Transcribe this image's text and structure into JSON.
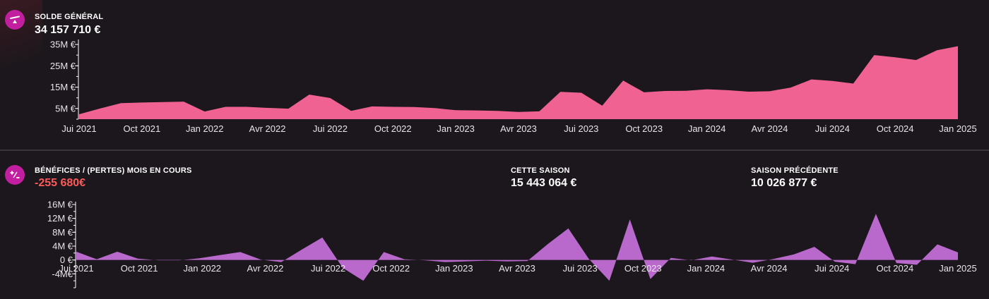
{
  "solde": {
    "title": "SOLDE GÉNÉRAL",
    "value": "34 157 710 €",
    "icon": "balance-scale-icon",
    "accent": "#c21fa0"
  },
  "results": {
    "title": "BÉNÉFICES / (PERTES) MOIS EN COURS",
    "value": "-255 680€",
    "value_color": "#ff5a5a",
    "icon": "plus-minus-icon",
    "this_season_title": "CETTE SAISON",
    "this_season_value": "15 443 064 €",
    "last_season_title": "SAISON PRÉCÉDENTE",
    "last_season_value": "10 026 877 €"
  },
  "chart_data": [
    {
      "type": "area",
      "color": "#f06292",
      "x_tick_labels": [
        "Jui 2021",
        "Oct 2021",
        "Jan 2022",
        "Avr 2022",
        "Jui 2022",
        "Oct 2022",
        "Jan 2023",
        "Avr 2023",
        "Jui 2023",
        "Oct 2023",
        "Jan 2024",
        "Avr 2024",
        "Jui 2024",
        "Oct 2024",
        "Jan 2025"
      ],
      "y_tick_labels": [
        "35M €",
        "25M €",
        "15M €",
        "5M €"
      ],
      "y_tick_values": [
        35,
        25,
        15,
        5
      ],
      "ylim": [
        0,
        36
      ],
      "unit": "M €",
      "values": [
        2.3,
        5,
        7.5,
        7.8,
        8,
        8.2,
        3.6,
        5.8,
        5.8,
        5.3,
        4.9,
        11.5,
        9.9,
        3.9,
        6,
        5.8,
        5.7,
        5.2,
        4.2,
        4.1,
        3.9,
        3.4,
        3.7,
        12.8,
        12.4,
        6.3,
        18.1,
        12.6,
        13.2,
        13.3,
        14,
        13.6,
        12.9,
        13.1,
        14.8,
        18.6,
        17.9,
        16.7,
        30,
        29,
        27.7,
        32.3,
        34.2
      ]
    },
    {
      "type": "area",
      "color": "#b968cc",
      "x_tick_labels": [
        "Jui 2021",
        "Oct 2021",
        "Jan 2022",
        "Avr 2022",
        "Jui 2022",
        "Oct 2022",
        "Jan 2023",
        "Avr 2023",
        "Jui 2023",
        "Oct 2023",
        "Jan 2024",
        "Avr 2024",
        "Jui 2024",
        "Oct 2024",
        "Jan 2025"
      ],
      "y_tick_labels": [
        "16M €",
        "12M €",
        "8M €",
        "4M €",
        "0 €",
        "-4M€"
      ],
      "y_tick_values": [
        16,
        12,
        8,
        4,
        0,
        -4
      ],
      "ylim": [
        -8,
        16
      ],
      "unit": "M €",
      "values": [
        2.4,
        0.2,
        2.4,
        0.4,
        -0.1,
        -0.1,
        0.5,
        1.4,
        2.3,
        0.1,
        -0.6,
        3,
        6.5,
        -2.3,
        -6,
        2.3,
        0.2,
        -0.1,
        -0.6,
        -0.4,
        -0.2,
        -0.4,
        -0.3,
        4.6,
        9.1,
        0.3,
        -6,
        11.7,
        -5.5,
        0.6,
        -0.1,
        1,
        0.1,
        -0.8,
        0.3,
        1.6,
        3.8,
        -0.5,
        -1.2,
        13.3,
        -0.9,
        -1.4,
        4.5,
        2.2
      ]
    }
  ]
}
